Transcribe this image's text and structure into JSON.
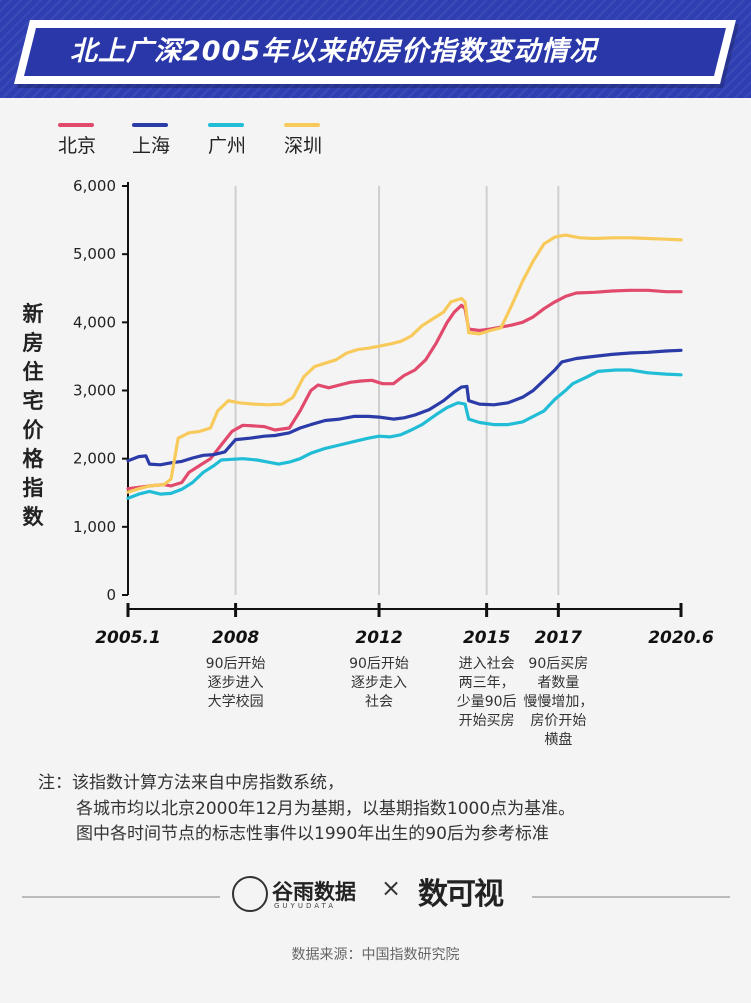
{
  "header": {
    "title": "北上广深2005年以来的房价指数变动情况"
  },
  "colors": {
    "beijing": "#e24a6d",
    "shanghai": "#2b3ba8",
    "guangzhou": "#21bdd6",
    "shenzhen": "#f8ca5c",
    "banner": "#2f3fb2"
  },
  "chart_data": {
    "type": "line",
    "title": "北上广深2005年以来的房价指数变动情况",
    "ylabel": "新房住宅价格指数",
    "xlabel": "",
    "ylim": [
      0,
      6000
    ],
    "xlim": [
      2005.0,
      2020.42
    ],
    "y_ticks": [
      0,
      1000,
      2000,
      3000,
      4000,
      5000,
      6000
    ],
    "y_tick_labels": [
      "0",
      "1,000",
      "2,000",
      "3,000",
      "4,000",
      "5,000",
      "6,000"
    ],
    "x_ticks": [
      {
        "x": 2005.0,
        "label": "2005.1"
      },
      {
        "x": 2008.0,
        "label": "2008"
      },
      {
        "x": 2012.0,
        "label": "2012"
      },
      {
        "x": 2015.0,
        "label": "2015"
      },
      {
        "x": 2017.0,
        "label": "2017"
      },
      {
        "x": 2020.42,
        "label": "2020.6"
      }
    ],
    "vertical_gridlines": [
      2008.0,
      2012.0,
      2015.0,
      2017.0
    ],
    "legend": "top-left",
    "series": [
      {
        "name": "北京",
        "color": "#e24a6d",
        "points": [
          [
            2005.0,
            1560
          ],
          [
            2005.3,
            1580
          ],
          [
            2005.6,
            1600
          ],
          [
            2006.0,
            1620
          ],
          [
            2006.2,
            1600
          ],
          [
            2006.5,
            1650
          ],
          [
            2006.7,
            1800
          ],
          [
            2007.0,
            1900
          ],
          [
            2007.3,
            2000
          ],
          [
            2007.6,
            2200
          ],
          [
            2007.9,
            2400
          ],
          [
            2008.2,
            2490
          ],
          [
            2008.5,
            2480
          ],
          [
            2008.8,
            2470
          ],
          [
            2009.1,
            2420
          ],
          [
            2009.5,
            2450
          ],
          [
            2009.8,
            2700
          ],
          [
            2010.1,
            3000
          ],
          [
            2010.3,
            3080
          ],
          [
            2010.6,
            3040
          ],
          [
            2010.9,
            3080
          ],
          [
            2011.2,
            3120
          ],
          [
            2011.5,
            3140
          ],
          [
            2011.8,
            3150
          ],
          [
            2012.1,
            3100
          ],
          [
            2012.4,
            3100
          ],
          [
            2012.7,
            3220
          ],
          [
            2013.0,
            3300
          ],
          [
            2013.3,
            3450
          ],
          [
            2013.6,
            3700
          ],
          [
            2013.9,
            4000
          ],
          [
            2014.1,
            4150
          ],
          [
            2014.3,
            4250
          ],
          [
            2014.4,
            4200
          ],
          [
            2014.5,
            3900
          ],
          [
            2014.8,
            3880
          ],
          [
            2015.1,
            3900
          ],
          [
            2015.4,
            3930
          ],
          [
            2015.7,
            3960
          ],
          [
            2016.0,
            4000
          ],
          [
            2016.3,
            4080
          ],
          [
            2016.6,
            4200
          ],
          [
            2016.9,
            4300
          ],
          [
            2017.2,
            4380
          ],
          [
            2017.5,
            4430
          ],
          [
            2018.0,
            4440
          ],
          [
            2018.5,
            4460
          ],
          [
            2019.0,
            4470
          ],
          [
            2019.5,
            4470
          ],
          [
            2020.0,
            4450
          ],
          [
            2020.42,
            4450
          ]
        ]
      },
      {
        "name": "上海",
        "color": "#2b3ba8",
        "points": [
          [
            2005.0,
            1970
          ],
          [
            2005.3,
            2030
          ],
          [
            2005.5,
            2040
          ],
          [
            2005.6,
            1920
          ],
          [
            2005.9,
            1910
          ],
          [
            2006.2,
            1940
          ],
          [
            2006.5,
            1960
          ],
          [
            2006.8,
            2010
          ],
          [
            2007.1,
            2050
          ],
          [
            2007.4,
            2060
          ],
          [
            2007.7,
            2100
          ],
          [
            2008.0,
            2280
          ],
          [
            2008.4,
            2300
          ],
          [
            2008.8,
            2330
          ],
          [
            2009.1,
            2340
          ],
          [
            2009.5,
            2380
          ],
          [
            2009.8,
            2450
          ],
          [
            2010.1,
            2500
          ],
          [
            2010.5,
            2560
          ],
          [
            2010.9,
            2580
          ],
          [
            2011.3,
            2620
          ],
          [
            2011.7,
            2620
          ],
          [
            2012.0,
            2610
          ],
          [
            2012.4,
            2580
          ],
          [
            2012.7,
            2600
          ],
          [
            2013.0,
            2640
          ],
          [
            2013.4,
            2720
          ],
          [
            2013.8,
            2850
          ],
          [
            2014.1,
            2980
          ],
          [
            2014.3,
            3050
          ],
          [
            2014.45,
            3060
          ],
          [
            2014.5,
            2850
          ],
          [
            2014.8,
            2800
          ],
          [
            2015.2,
            2790
          ],
          [
            2015.6,
            2820
          ],
          [
            2016.0,
            2900
          ],
          [
            2016.3,
            3000
          ],
          [
            2016.6,
            3150
          ],
          [
            2016.9,
            3300
          ],
          [
            2017.1,
            3420
          ],
          [
            2017.5,
            3470
          ],
          [
            2018.0,
            3500
          ],
          [
            2018.5,
            3530
          ],
          [
            2019.0,
            3550
          ],
          [
            2019.5,
            3560
          ],
          [
            2020.0,
            3580
          ],
          [
            2020.42,
            3590
          ]
        ]
      },
      {
        "name": "广州",
        "color": "#21bdd6",
        "points": [
          [
            2005.0,
            1420
          ],
          [
            2005.3,
            1480
          ],
          [
            2005.6,
            1520
          ],
          [
            2005.9,
            1480
          ],
          [
            2006.2,
            1490
          ],
          [
            2006.5,
            1550
          ],
          [
            2006.8,
            1650
          ],
          [
            2007.1,
            1800
          ],
          [
            2007.4,
            1900
          ],
          [
            2007.6,
            1980
          ],
          [
            2007.9,
            1990
          ],
          [
            2008.2,
            2000
          ],
          [
            2008.6,
            1980
          ],
          [
            2008.9,
            1950
          ],
          [
            2009.2,
            1920
          ],
          [
            2009.5,
            1950
          ],
          [
            2009.8,
            2000
          ],
          [
            2010.1,
            2080
          ],
          [
            2010.5,
            2150
          ],
          [
            2010.9,
            2200
          ],
          [
            2011.3,
            2250
          ],
          [
            2011.7,
            2300
          ],
          [
            2012.0,
            2330
          ],
          [
            2012.3,
            2320
          ],
          [
            2012.6,
            2350
          ],
          [
            2012.9,
            2420
          ],
          [
            2013.2,
            2500
          ],
          [
            2013.6,
            2650
          ],
          [
            2013.9,
            2750
          ],
          [
            2014.2,
            2820
          ],
          [
            2014.4,
            2800
          ],
          [
            2014.5,
            2580
          ],
          [
            2014.8,
            2530
          ],
          [
            2015.2,
            2500
          ],
          [
            2015.6,
            2500
          ],
          [
            2016.0,
            2540
          ],
          [
            2016.3,
            2620
          ],
          [
            2016.6,
            2700
          ],
          [
            2016.9,
            2870
          ],
          [
            2017.2,
            3000
          ],
          [
            2017.4,
            3100
          ],
          [
            2017.8,
            3200
          ],
          [
            2018.1,
            3280
          ],
          [
            2018.6,
            3300
          ],
          [
            2019.0,
            3300
          ],
          [
            2019.5,
            3260
          ],
          [
            2020.0,
            3240
          ],
          [
            2020.42,
            3230
          ]
        ]
      },
      {
        "name": "深圳",
        "color": "#f8ca5c",
        "points": [
          [
            2005.0,
            1510
          ],
          [
            2005.3,
            1560
          ],
          [
            2005.6,
            1600
          ],
          [
            2006.0,
            1620
          ],
          [
            2006.2,
            1700
          ],
          [
            2006.4,
            2300
          ],
          [
            2006.7,
            2380
          ],
          [
            2007.0,
            2400
          ],
          [
            2007.3,
            2450
          ],
          [
            2007.5,
            2700
          ],
          [
            2007.8,
            2850
          ],
          [
            2008.1,
            2820
          ],
          [
            2008.5,
            2800
          ],
          [
            2008.9,
            2790
          ],
          [
            2009.3,
            2800
          ],
          [
            2009.6,
            2900
          ],
          [
            2009.9,
            3200
          ],
          [
            2010.2,
            3350
          ],
          [
            2010.5,
            3400
          ],
          [
            2010.8,
            3450
          ],
          [
            2011.1,
            3550
          ],
          [
            2011.4,
            3600
          ],
          [
            2011.7,
            3620
          ],
          [
            2012.0,
            3650
          ],
          [
            2012.3,
            3680
          ],
          [
            2012.6,
            3720
          ],
          [
            2012.9,
            3800
          ],
          [
            2013.2,
            3950
          ],
          [
            2013.5,
            4050
          ],
          [
            2013.8,
            4150
          ],
          [
            2014.0,
            4300
          ],
          [
            2014.3,
            4350
          ],
          [
            2014.4,
            4300
          ],
          [
            2014.5,
            3850
          ],
          [
            2014.8,
            3830
          ],
          [
            2015.1,
            3880
          ],
          [
            2015.4,
            3920
          ],
          [
            2015.7,
            4250
          ],
          [
            2016.0,
            4600
          ],
          [
            2016.3,
            4900
          ],
          [
            2016.6,
            5150
          ],
          [
            2016.9,
            5250
          ],
          [
            2017.2,
            5280
          ],
          [
            2017.6,
            5240
          ],
          [
            2018.0,
            5230
          ],
          [
            2018.5,
            5240
          ],
          [
            2019.0,
            5240
          ],
          [
            2019.5,
            5230
          ],
          [
            2020.0,
            5220
          ],
          [
            2020.42,
            5210
          ]
        ]
      }
    ],
    "annotations": [
      {
        "x": 2008.0,
        "text": "90后开始\n逐步进入\n大学校园"
      },
      {
        "x": 2012.0,
        "text": "90后开始\n逐步走入\n社会"
      },
      {
        "x": 2015.0,
        "text": "进入社会\n两三年，\n少量90后\n开始买房"
      },
      {
        "x": 2017.0,
        "text": "90后买房\n者数量\n慢慢增加，\n房价开始\n横盘"
      }
    ]
  },
  "notes": [
    "注：该指数计算方法来自中房指数系统，",
    "各城市均以北京2000年12月为基期，以基期指数1000点为基准。",
    "图中各时间节点的标志性事件以1990年出生的90后为参考标准"
  ],
  "footer": {
    "logo_guyu": "谷雨数据",
    "logo_guyu_sub": "GUYUDATA",
    "times": "×",
    "logo_shushi": "数可视",
    "source": "数据来源：中国指数研究院"
  }
}
